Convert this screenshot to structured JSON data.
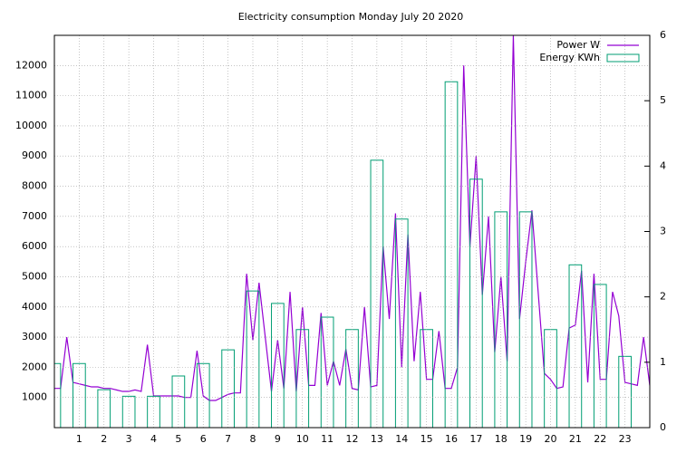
{
  "chart_data": {
    "type": "line",
    "title": "Electricity consumption Monday July 20 2020",
    "xlim": [
      0,
      24
    ],
    "xticks": [
      1,
      2,
      3,
      4,
      5,
      6,
      7,
      8,
      9,
      10,
      11,
      12,
      13,
      14,
      15,
      16,
      17,
      18,
      19,
      20,
      21,
      22,
      23
    ],
    "ylim": [
      0,
      13000
    ],
    "yticks": [
      1000,
      2000,
      3000,
      4000,
      5000,
      6000,
      7000,
      8000,
      9000,
      10000,
      11000,
      12000
    ],
    "y2lim": [
      0,
      6
    ],
    "y2ticks": [
      0,
      1,
      2,
      3,
      4,
      5,
      6
    ],
    "grid": true,
    "legend": "top-right",
    "boxwidth": 0.5,
    "series": [
      {
        "name": "Power W",
        "color": "#9400d3",
        "type": "line",
        "x": [
          0,
          0.25,
          0.5,
          0.75,
          1,
          1.25,
          1.5,
          1.75,
          2,
          2.25,
          2.5,
          2.75,
          3,
          3.25,
          3.5,
          3.75,
          4,
          4.25,
          4.5,
          4.75,
          5,
          5.25,
          5.5,
          5.75,
          6,
          6.25,
          6.5,
          6.75,
          7,
          7.25,
          7.5,
          7.75,
          8,
          8.25,
          8.5,
          8.75,
          9,
          9.25,
          9.5,
          9.75,
          10,
          10.25,
          10.5,
          10.75,
          11,
          11.25,
          11.5,
          11.75,
          12,
          12.25,
          12.5,
          12.75,
          13,
          13.25,
          13.5,
          13.75,
          14,
          14.25,
          14.5,
          14.75,
          15,
          15.25,
          15.5,
          15.75,
          16,
          16.25,
          16.5,
          16.75,
          17,
          17.25,
          17.5,
          17.75,
          18,
          18.25,
          18.5,
          18.75,
          19,
          19.25,
          19.5,
          19.75,
          20,
          20.25,
          20.5,
          20.75,
          21,
          21.25,
          21.5,
          21.75,
          22,
          22.25,
          22.5,
          22.75,
          23,
          23.25,
          23.5,
          23.75,
          24
        ],
        "values": [
          1300,
          1300,
          3000,
          1500,
          1450,
          1400,
          1350,
          1350,
          1300,
          1300,
          1250,
          1200,
          1200,
          1250,
          1200,
          2750,
          1050,
          1050,
          1050,
          1050,
          1050,
          1000,
          1000,
          2550,
          1050,
          900,
          900,
          1000,
          1100,
          1150,
          1150,
          5100,
          2900,
          4800,
          3000,
          1200,
          2900,
          1300,
          4500,
          1200,
          4000,
          1400,
          1400,
          3800,
          1400,
          2200,
          1400,
          2600,
          1300,
          1250,
          4000,
          1350,
          1400,
          6000,
          3600,
          7100,
          2000,
          6400,
          2200,
          4500,
          1600,
          1600,
          3200,
          1300,
          1300,
          2000,
          12000,
          6000,
          9000,
          4400,
          7000,
          2500,
          5000,
          2200,
          13000,
          3600,
          5500,
          7200,
          4500,
          1800,
          1600,
          1300,
          1350,
          3300,
          3400,
          5200,
          1500,
          5100,
          1600,
          1600,
          4500,
          3700,
          1500,
          1450,
          1400,
          3000,
          1400
        ]
      },
      {
        "name": "Energy KWh",
        "color": "#009e73",
        "type": "bar",
        "axis": "y2",
        "x": [
          0,
          1,
          2,
          3,
          4,
          5,
          6,
          7,
          8,
          9,
          10,
          11,
          12,
          13,
          14,
          15,
          16,
          17,
          18,
          19,
          20,
          21,
          22,
          23
        ],
        "values": [
          0.98,
          0.98,
          0.58,
          0.48,
          0.48,
          0.79,
          0.98,
          1.19,
          2.09,
          1.9,
          1.5,
          1.69,
          1.5,
          4.09,
          3.19,
          1.5,
          5.29,
          3.8,
          3.3,
          3.3,
          1.5,
          2.49,
          2.19,
          1.09
        ]
      }
    ]
  }
}
